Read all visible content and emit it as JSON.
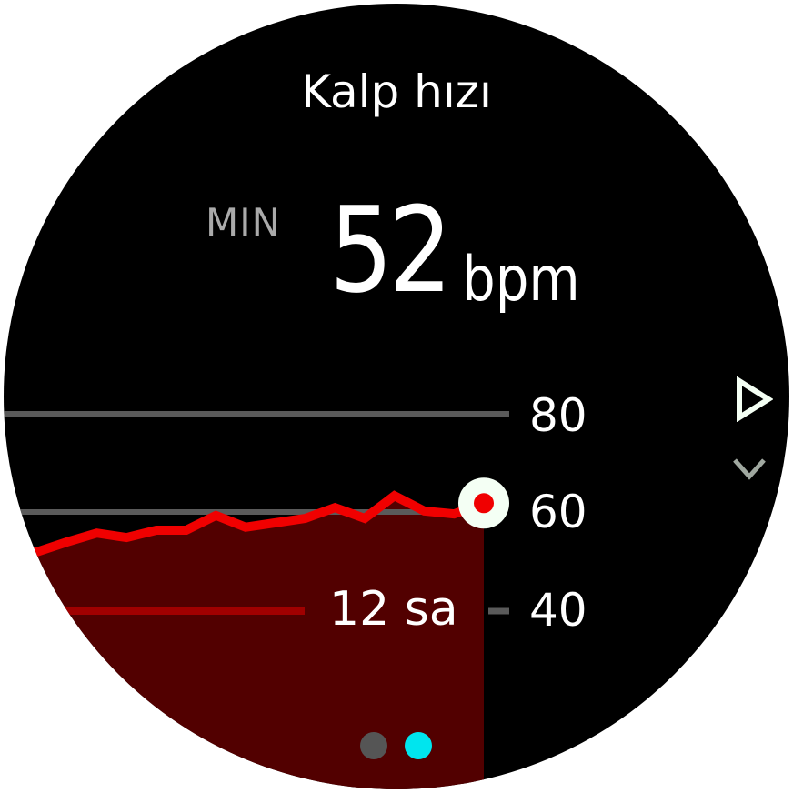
{
  "header": {
    "title": "Kalp hızı"
  },
  "summary": {
    "label": "MIN",
    "value": "52",
    "unit": "bpm"
  },
  "chart_data": {
    "type": "area",
    "ylim": [
      30,
      90
    ],
    "y_ticks": [
      "80",
      "60",
      "40"
    ],
    "y_tick_values": [
      80,
      60,
      40
    ],
    "time_scale_label": "12 sa",
    "series": [
      {
        "values": [
          51.9,
          53.9,
          55.7,
          54.8,
          56.3,
          56.3,
          59.3,
          56.9,
          57.8,
          58.7,
          60.9,
          58.7,
          63.3,
          60.2,
          59.6,
          61.8
        ]
      }
    ],
    "current_marker_value": 61.8,
    "colors": {
      "line": "#f00000",
      "fill": "#520000",
      "grid": "#5a5a5a",
      "scale_bar": "#a00000"
    }
  },
  "pager": {
    "count": 2,
    "active": 1,
    "colors": {
      "inactive": "#555555",
      "active": "#00e5ee"
    }
  },
  "nav": {
    "right": "play-triangle-icon",
    "down": "chevron-down-icon"
  }
}
